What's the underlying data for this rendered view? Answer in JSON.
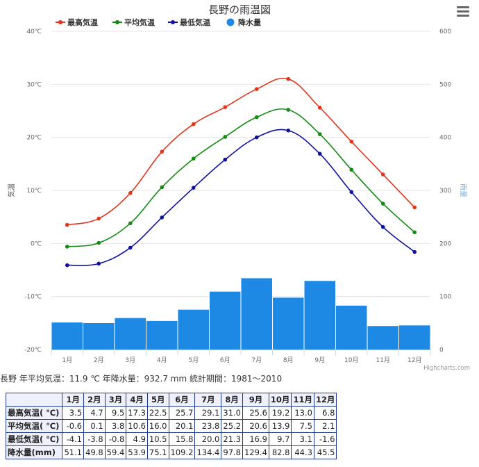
{
  "chart_data": {
    "type": "combo",
    "title": "長野の雨温図",
    "categories": [
      "1月",
      "2月",
      "3月",
      "4月",
      "5月",
      "6月",
      "7月",
      "8月",
      "9月",
      "10月",
      "11月",
      "12月"
    ],
    "series": [
      {
        "name": "最高気温",
        "type": "line",
        "axis": "left",
        "color": "#e0341c",
        "values": [
          3.5,
          4.7,
          9.5,
          17.3,
          22.5,
          25.7,
          29.1,
          31.0,
          25.6,
          19.2,
          13.0,
          6.8
        ]
      },
      {
        "name": "平均気温",
        "type": "line",
        "axis": "left",
        "color": "#138a13",
        "values": [
          -0.6,
          0.1,
          3.8,
          10.6,
          16.0,
          20.1,
          23.8,
          25.2,
          20.6,
          13.9,
          7.5,
          2.1
        ]
      },
      {
        "name": "最低気温",
        "type": "line",
        "axis": "left",
        "color": "#1010a0",
        "values": [
          -4.1,
          -3.8,
          -0.8,
          4.9,
          10.5,
          15.8,
          20.0,
          21.3,
          16.9,
          9.7,
          3.1,
          -1.6
        ]
      },
      {
        "name": "降水量",
        "type": "column",
        "axis": "right",
        "color": "#1e88e5",
        "values": [
          51.1,
          49.8,
          59.4,
          53.9,
          75.1,
          109.2,
          134.4,
          97.8,
          129.4,
          82.8,
          44.3,
          45.5
        ]
      }
    ],
    "y_left": {
      "label": "気温",
      "min": -20,
      "max": 40,
      "ticks": [
        "-20℃",
        "-10℃",
        "0℃",
        "10℃",
        "20℃",
        "30℃",
        "40℃"
      ]
    },
    "y_right": {
      "label": "雨量",
      "min": 0,
      "max": 600,
      "ticks": [
        "0",
        "100",
        "200",
        "300",
        "400",
        "500",
        "600"
      ]
    },
    "grid": true,
    "legend_position": "top-left",
    "credits": "Highcharts.com"
  },
  "summary": {
    "text": "長野 年平均気温：11.9 ℃ 年降水量：932.7 mm 統計期間：1981～2010"
  },
  "table": {
    "header_blank": "",
    "months": [
      "1月",
      "2月",
      "3月",
      "4月",
      "5月",
      "6月",
      "7月",
      "8月",
      "9月",
      "10月",
      "11月",
      "12月"
    ],
    "rows": [
      {
        "label": "最高気温( ℃)",
        "values": [
          "3.5",
          "4.7",
          "9.5",
          "17.3",
          "22.5",
          "25.7",
          "29.1",
          "31.0",
          "25.6",
          "19.2",
          "13.0",
          "6.8"
        ]
      },
      {
        "label": "平均気温( ℃)",
        "values": [
          "-0.6",
          "0.1",
          "3.8",
          "10.6",
          "16.0",
          "20.1",
          "23.8",
          "25.2",
          "20.6",
          "13.9",
          "7.5",
          "2.1"
        ]
      },
      {
        "label": "最低気温( ℃)",
        "values": [
          "-4.1",
          "-3.8",
          "-0.8",
          "4.9",
          "10.5",
          "15.8",
          "20.0",
          "21.3",
          "16.9",
          "9.7",
          "3.1",
          "-1.6"
        ]
      },
      {
        "label": "降水量(mm)",
        "values": [
          "51.1",
          "49.8",
          "59.4",
          "53.9",
          "75.1",
          "109.2",
          "134.4",
          "97.8",
          "129.4",
          "82.8",
          "44.3",
          "45.5"
        ]
      }
    ]
  },
  "ui": {
    "menu_icon": "hamburger-menu-icon"
  }
}
